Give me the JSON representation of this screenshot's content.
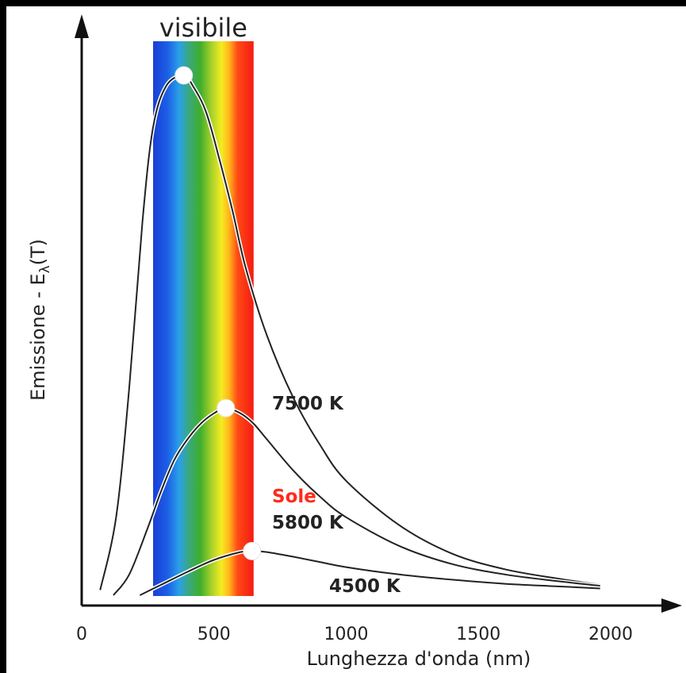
{
  "chart_data": {
    "type": "line",
    "title": "",
    "xlabel": "Lunghezza d'onda (nm)",
    "ylabel_prefix": "Emissione - E",
    "ylabel_sub": "λ",
    "ylabel_suffix": "(T)",
    "xlim": [
      0,
      2200
    ],
    "ylim": [
      0,
      1.0
    ],
    "x_ticks": [
      0,
      500,
      1000,
      1500,
      2000
    ],
    "x_tick_labels": [
      "0",
      "500",
      "1000",
      "1500",
      "2000"
    ],
    "visible_band": {
      "label": "visibile",
      "range": [
        270,
        650
      ]
    },
    "sun_label": "Sole",
    "colors": {
      "sun_label": "#ff2a1a",
      "curve": "#222222",
      "peak_marker": "#ffffff"
    },
    "series": [
      {
        "name": "7500 K",
        "label": "7500 K",
        "x": [
          70,
          130,
          180,
          230,
          270,
          320,
          386,
          420,
          470,
          520,
          570,
          620,
          700,
          800,
          900,
          1000,
          1200,
          1400,
          1600,
          1800,
          1960
        ],
        "y": [
          0.01,
          0.15,
          0.4,
          0.72,
          0.9,
          0.98,
          1.0,
          0.98,
          0.93,
          0.84,
          0.74,
          0.63,
          0.5,
          0.38,
          0.29,
          0.22,
          0.135,
          0.08,
          0.05,
          0.032,
          0.02
        ],
        "peak": [
          386,
          1.0
        ]
      },
      {
        "name": "5800 K",
        "label": "5800 K",
        "x": [
          120,
          180,
          250,
          300,
          350,
          400,
          450,
          500,
          545,
          600,
          650,
          700,
          800,
          900,
          1000,
          1200,
          1400,
          1600,
          1800,
          1960
        ],
        "y": [
          0.0,
          0.04,
          0.13,
          0.2,
          0.26,
          0.3,
          0.33,
          0.35,
          0.36,
          0.35,
          0.33,
          0.3,
          0.24,
          0.19,
          0.15,
          0.095,
          0.06,
          0.04,
          0.027,
          0.018
        ],
        "peak": [
          545,
          0.36
        ]
      },
      {
        "name": "4500 K",
        "label": "4500 K",
        "x": [
          220,
          300,
          400,
          500,
          600,
          644,
          700,
          800,
          900,
          1000,
          1200,
          1400,
          1600,
          1800,
          1960
        ],
        "y": [
          0.0,
          0.02,
          0.045,
          0.068,
          0.083,
          0.085,
          0.083,
          0.074,
          0.064,
          0.054,
          0.04,
          0.03,
          0.022,
          0.017,
          0.013
        ],
        "peak": [
          644,
          0.085
        ]
      }
    ]
  }
}
